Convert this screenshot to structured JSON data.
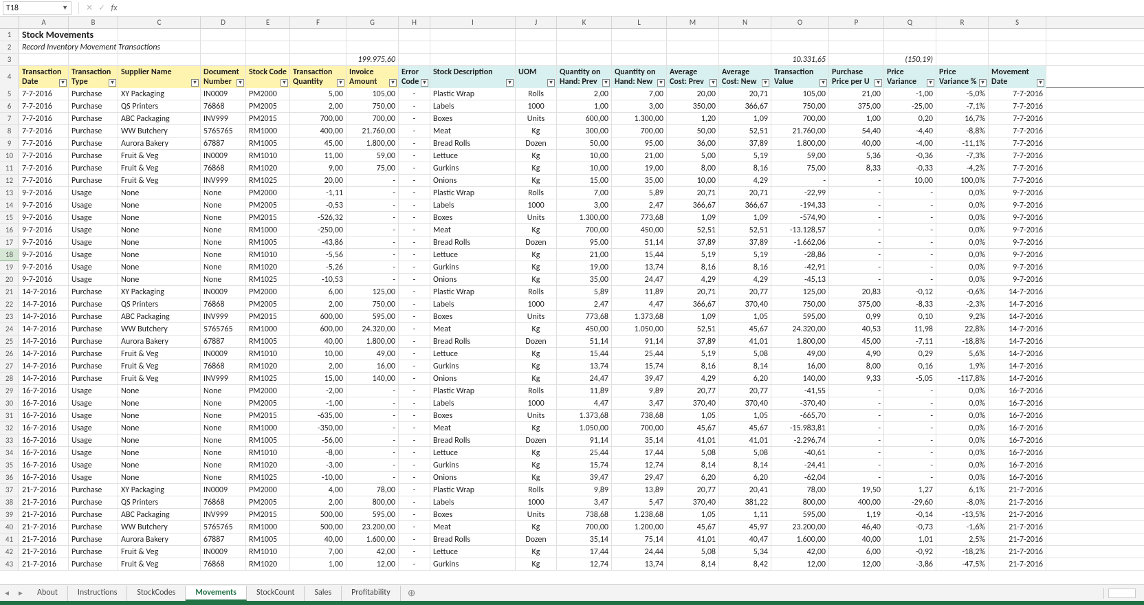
{
  "app": {
    "name_box": "T18",
    "formula": "",
    "columns": [
      "A",
      "B",
      "C",
      "D",
      "E",
      "F",
      "G",
      "H",
      "I",
      "J",
      "K",
      "L",
      "M",
      "N",
      "O",
      "P",
      "Q",
      "R",
      "S"
    ],
    "title": "Stock Movements",
    "subtitle": "Record Inventory Movement Transactions",
    "sum_G": "199.975,60",
    "sum_O": "10.331,65",
    "sum_Q": "(150,19)",
    "headers": {
      "A": "Transaction Date",
      "B": "Transaction Type",
      "C": "Supplier Name",
      "D": "Document Number",
      "E": "Stock Code",
      "F": "Transaction Quantity",
      "G": "Invoice Amount",
      "H": "Error Code",
      "I": "Stock Description",
      "J": "UOM",
      "K": "Quantity on Hand: Prev",
      "L": "Quantity on Hand: New",
      "M": "Average Cost: Prev",
      "N": "Average Cost: New",
      "O": "Transaction Value",
      "P": "Purchase Price per U",
      "Q": "Price Variance",
      "R": "Price Variance %",
      "S": "Movement Date"
    },
    "header_yellow_cols": [
      "A",
      "B",
      "C",
      "D",
      "E",
      "F",
      "G"
    ],
    "selected_cell": {
      "row": 18,
      "col": "T"
    },
    "tabs": [
      "About",
      "Instructions",
      "StockCodes",
      "Movements",
      "StockCount",
      "Sales",
      "Profitability"
    ],
    "active_tab": "Movements"
  },
  "rows": [
    {
      "n": 5,
      "A": "7-7-2016",
      "B": "Purchase",
      "C": "XY Packaging",
      "D": "IN0009",
      "E": "PM2000",
      "F": "5,00",
      "G": "105,00",
      "H": "-",
      "I": "Plastic Wrap",
      "J": "Rolls",
      "K": "2,00",
      "L": "7,00",
      "M": "20,00",
      "N": "20,71",
      "O": "105,00",
      "P": "21,00",
      "Q": "-1,00",
      "R": "-5,0%",
      "S": "7-7-2016"
    },
    {
      "n": 6,
      "A": "7-7-2016",
      "B": "Purchase",
      "C": "QS Printers",
      "D": "76868",
      "E": "PM2005",
      "F": "2,00",
      "G": "750,00",
      "H": "-",
      "I": "Labels",
      "J": "1000",
      "K": "1,00",
      "L": "3,00",
      "M": "350,00",
      "N": "366,67",
      "O": "750,00",
      "P": "375,00",
      "Q": "-25,00",
      "R": "-7,1%",
      "S": "7-7-2016"
    },
    {
      "n": 7,
      "A": "7-7-2016",
      "B": "Purchase",
      "C": "ABC Packaging",
      "D": "INV999",
      "E": "PM2015",
      "F": "700,00",
      "G": "700,00",
      "H": "-",
      "I": "Boxes",
      "J": "Units",
      "K": "600,00",
      "L": "1.300,00",
      "M": "1,20",
      "N": "1,09",
      "O": "700,00",
      "P": "1,00",
      "Q": "0,20",
      "R": "16,7%",
      "S": "7-7-2016"
    },
    {
      "n": 8,
      "A": "7-7-2016",
      "B": "Purchase",
      "C": "WW Butchery",
      "D": "5765765",
      "E": "RM1000",
      "F": "400,00",
      "G": "21.760,00",
      "H": "-",
      "I": "Meat",
      "J": "Kg",
      "K": "300,00",
      "L": "700,00",
      "M": "50,00",
      "N": "52,51",
      "O": "21.760,00",
      "P": "54,40",
      "Q": "-4,40",
      "R": "-8,8%",
      "S": "7-7-2016"
    },
    {
      "n": 9,
      "A": "7-7-2016",
      "B": "Purchase",
      "C": "Aurora Bakery",
      "D": "67887",
      "E": "RM1005",
      "F": "45,00",
      "G": "1.800,00",
      "H": "-",
      "I": "Bread Rolls",
      "J": "Dozen",
      "K": "50,00",
      "L": "95,00",
      "M": "36,00",
      "N": "37,89",
      "O": "1.800,00",
      "P": "40,00",
      "Q": "-4,00",
      "R": "-11,1%",
      "S": "7-7-2016"
    },
    {
      "n": 10,
      "A": "7-7-2016",
      "B": "Purchase",
      "C": "Fruit & Veg",
      "D": "IN0009",
      "E": "RM1010",
      "F": "11,00",
      "G": "59,00",
      "H": "-",
      "I": "Lettuce",
      "J": "Kg",
      "K": "10,00",
      "L": "21,00",
      "M": "5,00",
      "N": "5,19",
      "O": "59,00",
      "P": "5,36",
      "Q": "-0,36",
      "R": "-7,3%",
      "S": "7-7-2016"
    },
    {
      "n": 11,
      "A": "7-7-2016",
      "B": "Purchase",
      "C": "Fruit & Veg",
      "D": "76868",
      "E": "RM1020",
      "F": "9,00",
      "G": "75,00",
      "H": "-",
      "I": "Gurkins",
      "J": "Kg",
      "K": "10,00",
      "L": "19,00",
      "M": "8,00",
      "N": "8,16",
      "O": "75,00",
      "P": "8,33",
      "Q": "-0,33",
      "R": "-4,2%",
      "S": "7-7-2016"
    },
    {
      "n": 12,
      "A": "7-7-2016",
      "B": "Purchase",
      "C": "Fruit & Veg",
      "D": "INV999",
      "E": "RM1025",
      "F": "20,00",
      "G": "-",
      "H": "-",
      "I": "Onions",
      "J": "Kg",
      "K": "15,00",
      "L": "35,00",
      "M": "10,00",
      "N": "4,29",
      "O": "-",
      "P": "-",
      "Q": "10,00",
      "R": "100,0%",
      "S": "7-7-2016"
    },
    {
      "n": 13,
      "A": "9-7-2016",
      "B": "Usage",
      "C": "None",
      "D": "None",
      "E": "PM2000",
      "F": "-1,11",
      "G": "-",
      "H": "-",
      "I": "Plastic Wrap",
      "J": "Rolls",
      "K": "7,00",
      "L": "5,89",
      "M": "20,71",
      "N": "20,71",
      "O": "-22,99",
      "P": "-",
      "Q": "-",
      "R": "0,0%",
      "S": "9-7-2016"
    },
    {
      "n": 14,
      "A": "9-7-2016",
      "B": "Usage",
      "C": "None",
      "D": "None",
      "E": "PM2005",
      "F": "-0,53",
      "G": "-",
      "H": "-",
      "I": "Labels",
      "J": "1000",
      "K": "3,00",
      "L": "2,47",
      "M": "366,67",
      "N": "366,67",
      "O": "-194,33",
      "P": "-",
      "Q": "-",
      "R": "0,0%",
      "S": "9-7-2016"
    },
    {
      "n": 15,
      "A": "9-7-2016",
      "B": "Usage",
      "C": "None",
      "D": "None",
      "E": "PM2015",
      "F": "-526,32",
      "G": "-",
      "H": "-",
      "I": "Boxes",
      "J": "Units",
      "K": "1.300,00",
      "L": "773,68",
      "M": "1,09",
      "N": "1,09",
      "O": "-574,90",
      "P": "-",
      "Q": "-",
      "R": "0,0%",
      "S": "9-7-2016"
    },
    {
      "n": 16,
      "A": "9-7-2016",
      "B": "Usage",
      "C": "None",
      "D": "None",
      "E": "RM1000",
      "F": "-250,00",
      "G": "-",
      "H": "-",
      "I": "Meat",
      "J": "Kg",
      "K": "700,00",
      "L": "450,00",
      "M": "52,51",
      "N": "52,51",
      "O": "-13.128,57",
      "P": "-",
      "Q": "-",
      "R": "0,0%",
      "S": "9-7-2016"
    },
    {
      "n": 17,
      "A": "9-7-2016",
      "B": "Usage",
      "C": "None",
      "D": "None",
      "E": "RM1005",
      "F": "-43,86",
      "G": "-",
      "H": "-",
      "I": "Bread Rolls",
      "J": "Dozen",
      "K": "95,00",
      "L": "51,14",
      "M": "37,89",
      "N": "37,89",
      "O": "-1.662,06",
      "P": "-",
      "Q": "-",
      "R": "0,0%",
      "S": "9-7-2016"
    },
    {
      "n": 18,
      "A": "9-7-2016",
      "B": "Usage",
      "C": "None",
      "D": "None",
      "E": "RM1010",
      "F": "-5,56",
      "G": "-",
      "H": "-",
      "I": "Lettuce",
      "J": "Kg",
      "K": "21,00",
      "L": "15,44",
      "M": "5,19",
      "N": "5,19",
      "O": "-28,86",
      "P": "-",
      "Q": "-",
      "R": "0,0%",
      "S": "9-7-2016"
    },
    {
      "n": 19,
      "A": "9-7-2016",
      "B": "Usage",
      "C": "None",
      "D": "None",
      "E": "RM1020",
      "F": "-5,26",
      "G": "-",
      "H": "-",
      "I": "Gurkins",
      "J": "Kg",
      "K": "19,00",
      "L": "13,74",
      "M": "8,16",
      "N": "8,16",
      "O": "-42,91",
      "P": "-",
      "Q": "-",
      "R": "0,0%",
      "S": "9-7-2016"
    },
    {
      "n": 20,
      "A": "9-7-2016",
      "B": "Usage",
      "C": "None",
      "D": "None",
      "E": "RM1025",
      "F": "-10,53",
      "G": "-",
      "H": "-",
      "I": "Onions",
      "J": "Kg",
      "K": "35,00",
      "L": "24,47",
      "M": "4,29",
      "N": "4,29",
      "O": "-45,13",
      "P": "-",
      "Q": "-",
      "R": "0,0%",
      "S": "9-7-2016"
    },
    {
      "n": 21,
      "A": "14-7-2016",
      "B": "Purchase",
      "C": "XY Packaging",
      "D": "IN0009",
      "E": "PM2000",
      "F": "6,00",
      "G": "125,00",
      "H": "-",
      "I": "Plastic Wrap",
      "J": "Rolls",
      "K": "5,89",
      "L": "11,89",
      "M": "20,71",
      "N": "20,77",
      "O": "125,00",
      "P": "20,83",
      "Q": "-0,12",
      "R": "-0,6%",
      "S": "14-7-2016"
    },
    {
      "n": 22,
      "A": "14-7-2016",
      "B": "Purchase",
      "C": "QS Printers",
      "D": "76868",
      "E": "PM2005",
      "F": "2,00",
      "G": "750,00",
      "H": "-",
      "I": "Labels",
      "J": "1000",
      "K": "2,47",
      "L": "4,47",
      "M": "366,67",
      "N": "370,40",
      "O": "750,00",
      "P": "375,00",
      "Q": "-8,33",
      "R": "-2,3%",
      "S": "14-7-2016"
    },
    {
      "n": 23,
      "A": "14-7-2016",
      "B": "Purchase",
      "C": "ABC Packaging",
      "D": "INV999",
      "E": "PM2015",
      "F": "600,00",
      "G": "595,00",
      "H": "-",
      "I": "Boxes",
      "J": "Units",
      "K": "773,68",
      "L": "1.373,68",
      "M": "1,09",
      "N": "1,05",
      "O": "595,00",
      "P": "0,99",
      "Q": "0,10",
      "R": "9,2%",
      "S": "14-7-2016"
    },
    {
      "n": 24,
      "A": "14-7-2016",
      "B": "Purchase",
      "C": "WW Butchery",
      "D": "5765765",
      "E": "RM1000",
      "F": "600,00",
      "G": "24.320,00",
      "H": "-",
      "I": "Meat",
      "J": "Kg",
      "K": "450,00",
      "L": "1.050,00",
      "M": "52,51",
      "N": "45,67",
      "O": "24.320,00",
      "P": "40,53",
      "Q": "11,98",
      "R": "22,8%",
      "S": "14-7-2016"
    },
    {
      "n": 25,
      "A": "14-7-2016",
      "B": "Purchase",
      "C": "Aurora Bakery",
      "D": "67887",
      "E": "RM1005",
      "F": "40,00",
      "G": "1.800,00",
      "H": "-",
      "I": "Bread Rolls",
      "J": "Dozen",
      "K": "51,14",
      "L": "91,14",
      "M": "37,89",
      "N": "41,01",
      "O": "1.800,00",
      "P": "45,00",
      "Q": "-7,11",
      "R": "-18,8%",
      "S": "14-7-2016"
    },
    {
      "n": 26,
      "A": "14-7-2016",
      "B": "Purchase",
      "C": "Fruit & Veg",
      "D": "IN0009",
      "E": "RM1010",
      "F": "10,00",
      "G": "49,00",
      "H": "-",
      "I": "Lettuce",
      "J": "Kg",
      "K": "15,44",
      "L": "25,44",
      "M": "5,19",
      "N": "5,08",
      "O": "49,00",
      "P": "4,90",
      "Q": "0,29",
      "R": "5,6%",
      "S": "14-7-2016"
    },
    {
      "n": 27,
      "A": "14-7-2016",
      "B": "Purchase",
      "C": "Fruit & Veg",
      "D": "76868",
      "E": "RM1020",
      "F": "2,00",
      "G": "16,00",
      "H": "-",
      "I": "Gurkins",
      "J": "Kg",
      "K": "13,74",
      "L": "15,74",
      "M": "8,16",
      "N": "8,14",
      "O": "16,00",
      "P": "8,00",
      "Q": "0,16",
      "R": "1,9%",
      "S": "14-7-2016"
    },
    {
      "n": 28,
      "A": "14-7-2016",
      "B": "Purchase",
      "C": "Fruit & Veg",
      "D": "INV999",
      "E": "RM1025",
      "F": "15,00",
      "G": "140,00",
      "H": "-",
      "I": "Onions",
      "J": "Kg",
      "K": "24,47",
      "L": "39,47",
      "M": "4,29",
      "N": "6,20",
      "O": "140,00",
      "P": "9,33",
      "Q": "-5,05",
      "R": "-117,8%",
      "S": "14-7-2016"
    },
    {
      "n": 29,
      "A": "16-7-2016",
      "B": "Usage",
      "C": "None",
      "D": "None",
      "E": "PM2000",
      "F": "-2,00",
      "G": "-",
      "H": "-",
      "I": "Plastic Wrap",
      "J": "Rolls",
      "K": "11,89",
      "L": "9,89",
      "M": "20,77",
      "N": "20,77",
      "O": "-41,55",
      "P": "-",
      "Q": "-",
      "R": "0,0%",
      "S": "16-7-2016"
    },
    {
      "n": 30,
      "A": "16-7-2016",
      "B": "Usage",
      "C": "None",
      "D": "None",
      "E": "PM2005",
      "F": "-1,00",
      "G": "-",
      "H": "-",
      "I": "Labels",
      "J": "1000",
      "K": "4,47",
      "L": "3,47",
      "M": "370,40",
      "N": "370,40",
      "O": "-370,40",
      "P": "-",
      "Q": "-",
      "R": "0,0%",
      "S": "16-7-2016"
    },
    {
      "n": 31,
      "A": "16-7-2016",
      "B": "Usage",
      "C": "None",
      "D": "None",
      "E": "PM2015",
      "F": "-635,00",
      "G": "-",
      "H": "-",
      "I": "Boxes",
      "J": "Units",
      "K": "1.373,68",
      "L": "738,68",
      "M": "1,05",
      "N": "1,05",
      "O": "-665,70",
      "P": "-",
      "Q": "-",
      "R": "0,0%",
      "S": "16-7-2016"
    },
    {
      "n": 32,
      "A": "16-7-2016",
      "B": "Usage",
      "C": "None",
      "D": "None",
      "E": "RM1000",
      "F": "-350,00",
      "G": "-",
      "H": "-",
      "I": "Meat",
      "J": "Kg",
      "K": "1.050,00",
      "L": "700,00",
      "M": "45,67",
      "N": "45,67",
      "O": "-15.983,81",
      "P": "-",
      "Q": "-",
      "R": "0,0%",
      "S": "16-7-2016"
    },
    {
      "n": 33,
      "A": "16-7-2016",
      "B": "Usage",
      "C": "None",
      "D": "None",
      "E": "RM1005",
      "F": "-56,00",
      "G": "-",
      "H": "-",
      "I": "Bread Rolls",
      "J": "Dozen",
      "K": "91,14",
      "L": "35,14",
      "M": "41,01",
      "N": "41,01",
      "O": "-2.296,74",
      "P": "-",
      "Q": "-",
      "R": "0,0%",
      "S": "16-7-2016"
    },
    {
      "n": 34,
      "A": "16-7-2016",
      "B": "Usage",
      "C": "None",
      "D": "None",
      "E": "RM1010",
      "F": "-8,00",
      "G": "-",
      "H": "-",
      "I": "Lettuce",
      "J": "Kg",
      "K": "25,44",
      "L": "17,44",
      "M": "5,08",
      "N": "5,08",
      "O": "-40,61",
      "P": "-",
      "Q": "-",
      "R": "0,0%",
      "S": "16-7-2016"
    },
    {
      "n": 35,
      "A": "16-7-2016",
      "B": "Usage",
      "C": "None",
      "D": "None",
      "E": "RM1020",
      "F": "-3,00",
      "G": "-",
      "H": "-",
      "I": "Gurkins",
      "J": "Kg",
      "K": "15,74",
      "L": "12,74",
      "M": "8,14",
      "N": "8,14",
      "O": "-24,41",
      "P": "-",
      "Q": "-",
      "R": "0,0%",
      "S": "16-7-2016"
    },
    {
      "n": 36,
      "A": "16-7-2016",
      "B": "Usage",
      "C": "None",
      "D": "None",
      "E": "RM1025",
      "F": "-10,00",
      "G": "-",
      "H": "-",
      "I": "Onions",
      "J": "Kg",
      "K": "39,47",
      "L": "29,47",
      "M": "6,20",
      "N": "6,20",
      "O": "-62,04",
      "P": "-",
      "Q": "-",
      "R": "0,0%",
      "S": "16-7-2016"
    },
    {
      "n": 37,
      "A": "21-7-2016",
      "B": "Purchase",
      "C": "XY Packaging",
      "D": "IN0009",
      "E": "PM2000",
      "F": "4,00",
      "G": "78,00",
      "H": "-",
      "I": "Plastic Wrap",
      "J": "Rolls",
      "K": "9,89",
      "L": "13,89",
      "M": "20,77",
      "N": "20,41",
      "O": "78,00",
      "P": "19,50",
      "Q": "1,27",
      "R": "6,1%",
      "S": "21-7-2016"
    },
    {
      "n": 38,
      "A": "21-7-2016",
      "B": "Purchase",
      "C": "QS Printers",
      "D": "76868",
      "E": "PM2005",
      "F": "2,00",
      "G": "800,00",
      "H": "-",
      "I": "Labels",
      "J": "1000",
      "K": "3,47",
      "L": "5,47",
      "M": "370,40",
      "N": "381,22",
      "O": "800,00",
      "P": "400,00",
      "Q": "-29,60",
      "R": "-8,0%",
      "S": "21-7-2016"
    },
    {
      "n": 39,
      "A": "21-7-2016",
      "B": "Purchase",
      "C": "ABC Packaging",
      "D": "INV999",
      "E": "PM2015",
      "F": "500,00",
      "G": "595,00",
      "H": "-",
      "I": "Boxes",
      "J": "Units",
      "K": "738,68",
      "L": "1.238,68",
      "M": "1,05",
      "N": "1,11",
      "O": "595,00",
      "P": "1,19",
      "Q": "-0,14",
      "R": "-13,5%",
      "S": "21-7-2016"
    },
    {
      "n": 40,
      "A": "21-7-2016",
      "B": "Purchase",
      "C": "WW Butchery",
      "D": "5765765",
      "E": "RM1000",
      "F": "500,00",
      "G": "23.200,00",
      "H": "-",
      "I": "Meat",
      "J": "Kg",
      "K": "700,00",
      "L": "1.200,00",
      "M": "45,67",
      "N": "45,97",
      "O": "23.200,00",
      "P": "46,40",
      "Q": "-0,73",
      "R": "-1,6%",
      "S": "21-7-2016"
    },
    {
      "n": 41,
      "A": "21-7-2016",
      "B": "Purchase",
      "C": "Aurora Bakery",
      "D": "67887",
      "E": "RM1005",
      "F": "40,00",
      "G": "1.600,00",
      "H": "-",
      "I": "Bread Rolls",
      "J": "Dozen",
      "K": "35,14",
      "L": "75,14",
      "M": "41,01",
      "N": "40,47",
      "O": "1.600,00",
      "P": "40,00",
      "Q": "1,01",
      "R": "2,5%",
      "S": "21-7-2016"
    },
    {
      "n": 42,
      "A": "21-7-2016",
      "B": "Purchase",
      "C": "Fruit & Veg",
      "D": "IN0009",
      "E": "RM1010",
      "F": "7,00",
      "G": "42,00",
      "H": "-",
      "I": "Lettuce",
      "J": "Kg",
      "K": "17,44",
      "L": "24,44",
      "M": "5,08",
      "N": "5,34",
      "O": "42,00",
      "P": "6,00",
      "Q": "-0,92",
      "R": "-18,2%",
      "S": "21-7-2016"
    },
    {
      "n": 43,
      "A": "21-7-2016",
      "B": "Purchase",
      "C": "Fruit & Veg",
      "D": "76868",
      "E": "RM1020",
      "F": "1,00",
      "G": "12,00",
      "H": "-",
      "I": "Gurkins",
      "J": "Kg",
      "K": "12,74",
      "L": "13,74",
      "M": "8,14",
      "N": "8,42",
      "O": "12,00",
      "P": "12,00",
      "Q": "-3,86",
      "R": "-47,5%",
      "S": "21-7-2016"
    }
  ]
}
